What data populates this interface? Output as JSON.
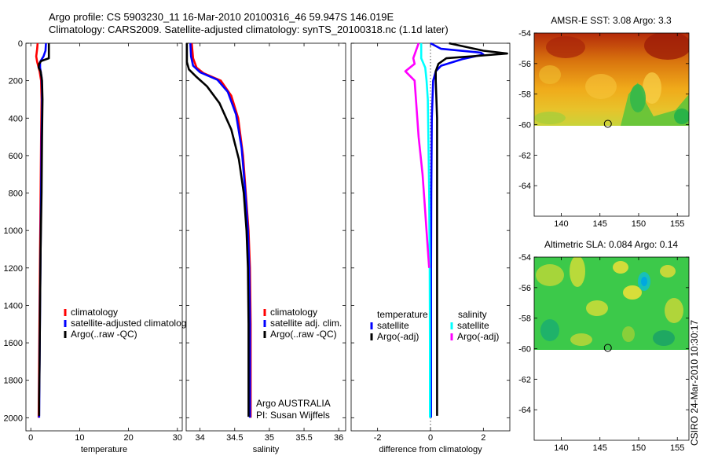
{
  "title_line1": "Argo profile: CS 5903230_11 16-Mar-2010 20100316_46 59.947S 146.019E",
  "title_line2": "Climatology: CARS2009. Satellite-adjusted climatology: synTS_20100318.nc (1.1d later)",
  "credit": "CSIRO 24-Mar-2010 10:30:17",
  "colors": {
    "red": "#ff0000",
    "blue": "#0000ff",
    "black": "#000000",
    "cyan": "#00ffff",
    "magenta": "#ff00ff"
  },
  "chart_data": [
    {
      "type": "line",
      "title": "",
      "xlabel": "temperature",
      "ylabel": "",
      "xlim": [
        -1,
        31
      ],
      "ylim": [
        2070,
        0
      ],
      "xticks": [
        0,
        10,
        20,
        30
      ],
      "yticks": [
        0,
        200,
        400,
        600,
        800,
        1000,
        1200,
        1400,
        1600,
        1800,
        2000
      ],
      "legend": [
        "climatology",
        "satellite-adjusted climatolog",
        "Argo(..raw -QC)"
      ],
      "series": [
        {
          "name": "climatology",
          "color": "#ff0000",
          "points": [
            [
              1.4,
              0
            ],
            [
              1.3,
              30
            ],
            [
              1.1,
              70
            ],
            [
              1.3,
              100
            ],
            [
              1.8,
              150
            ],
            [
              2.1,
              200
            ],
            [
              2.2,
              300
            ],
            [
              2.1,
              500
            ],
            [
              2.0,
              800
            ],
            [
              1.9,
              1100
            ],
            [
              1.8,
              1400
            ],
            [
              1.7,
              1700
            ],
            [
              1.6,
              2000
            ]
          ]
        },
        {
          "name": "satellite-adjusted climatology",
          "color": "#0000ff",
          "points": [
            [
              3.1,
              0
            ],
            [
              3.0,
              40
            ],
            [
              2.6,
              70
            ],
            [
              1.9,
              100
            ],
            [
              1.9,
              130
            ],
            [
              2.2,
              180
            ],
            [
              2.3,
              250
            ],
            [
              2.3,
              350
            ],
            [
              2.2,
              500
            ],
            [
              2.1,
              800
            ],
            [
              2.0,
              1100
            ],
            [
              1.9,
              1400
            ],
            [
              1.8,
              1700
            ],
            [
              1.7,
              2000
            ]
          ]
        },
        {
          "name": "Argo(..raw -QC)",
          "color": "#000000",
          "points": [
            [
              3.7,
              0
            ],
            [
              3.7,
              40
            ],
            [
              3.7,
              80
            ],
            [
              2.1,
              95
            ],
            [
              1.7,
              110
            ],
            [
              1.6,
              130
            ],
            [
              2.0,
              150
            ],
            [
              2.3,
              200
            ],
            [
              2.4,
              300
            ],
            [
              2.3,
              500
            ],
            [
              2.2,
              800
            ],
            [
              2.0,
              1100
            ],
            [
              1.9,
              1400
            ],
            [
              1.8,
              1700
            ],
            [
              1.7,
              1900
            ],
            [
              1.7,
              1990
            ]
          ]
        }
      ]
    },
    {
      "type": "line",
      "title": "",
      "xlabel": "salinity",
      "ylabel": "",
      "xlim": [
        33.8,
        36.1
      ],
      "ylim": [
        2070,
        0
      ],
      "xticks": [
        34,
        34.5,
        35,
        35.5,
        36
      ],
      "xticklabels": [
        "34",
        "34.5",
        "35",
        "35.5",
        "36"
      ],
      "legend": [
        "climatology",
        "satellite adj. clim.",
        "Argo(..raw -QC)"
      ],
      "annotations": [
        "Argo AUSTRALIA",
        "PI: Susan Wijffels"
      ],
      "series": [
        {
          "name": "climatology",
          "color": "#ff0000",
          "points": [
            [
              33.88,
              0
            ],
            [
              33.9,
              80
            ],
            [
              33.95,
              130
            ],
            [
              34.05,
              160
            ],
            [
              34.3,
              200
            ],
            [
              34.45,
              280
            ],
            [
              34.55,
              400
            ],
            [
              34.62,
              600
            ],
            [
              34.66,
              800
            ],
            [
              34.7,
              1000
            ],
            [
              34.72,
              1200
            ],
            [
              34.73,
              1500
            ],
            [
              34.73,
              1800
            ],
            [
              34.73,
              2000
            ]
          ]
        },
        {
          "name": "satellite adj. clim.",
          "color": "#0000ff",
          "points": [
            [
              33.86,
              0
            ],
            [
              33.87,
              70
            ],
            [
              33.9,
              120
            ],
            [
              34.0,
              155
            ],
            [
              34.25,
              195
            ],
            [
              34.4,
              260
            ],
            [
              34.52,
              380
            ],
            [
              34.6,
              560
            ],
            [
              34.65,
              780
            ],
            [
              34.69,
              1000
            ],
            [
              34.71,
              1200
            ],
            [
              34.72,
              1500
            ],
            [
              34.72,
              1800
            ],
            [
              34.72,
              2000
            ]
          ]
        },
        {
          "name": "Argo(..raw -QC)",
          "color": "#000000",
          "points": [
            [
              33.81,
              0
            ],
            [
              33.81,
              100
            ],
            [
              33.84,
              140
            ],
            [
              33.95,
              180
            ],
            [
              34.1,
              230
            ],
            [
              34.28,
              320
            ],
            [
              34.45,
              460
            ],
            [
              34.56,
              620
            ],
            [
              34.63,
              800
            ],
            [
              34.67,
              1000
            ],
            [
              34.69,
              1200
            ],
            [
              34.7,
              1500
            ],
            [
              34.7,
              1800
            ],
            [
              34.7,
              1995
            ]
          ]
        }
      ]
    },
    {
      "type": "line",
      "title": "",
      "xlabel": "difference from climatology",
      "ylabel": "",
      "xlim": [
        -3.0,
        3.0
      ],
      "ylim": [
        2070,
        0
      ],
      "xticks": [
        -2,
        0,
        2
      ],
      "zero_line": true,
      "legend_headers": [
        "temperature",
        "salinity"
      ],
      "legend": [
        "satellite",
        "Argo(-adj)",
        "satellite",
        "Argo(-adj)"
      ],
      "series": [
        {
          "name": "temperature satellite",
          "color": "#0000ff",
          "points": [
            [
              0.0,
              0
            ],
            [
              0.4,
              30
            ],
            [
              1.9,
              50
            ],
            [
              2.0,
              60
            ],
            [
              1.2,
              85
            ],
            [
              0.4,
              120
            ],
            [
              0.2,
              150
            ],
            [
              0.1,
              200
            ],
            [
              0.05,
              400
            ],
            [
              0.03,
              800
            ],
            [
              0.02,
              1200
            ],
            [
              0.02,
              1600
            ],
            [
              0.02,
              2000
            ]
          ]
        },
        {
          "name": "temperature Argo(-adj)",
          "color": "#000000",
          "points": [
            [
              0.7,
              0
            ],
            [
              2.0,
              40
            ],
            [
              2.9,
              55
            ],
            [
              2.0,
              65
            ],
            [
              0.6,
              80
            ],
            [
              0.3,
              110
            ],
            [
              0.2,
              150
            ],
            [
              0.2,
              200
            ],
            [
              0.25,
              400
            ],
            [
              0.25,
              800
            ],
            [
              0.25,
              1200
            ],
            [
              0.25,
              1600
            ],
            [
              0.25,
              1990
            ]
          ]
        },
        {
          "name": "salinity satellite",
          "color": "#00ffff",
          "points": [
            [
              -0.35,
              0
            ],
            [
              -0.35,
              80
            ],
            [
              -0.2,
              130
            ],
            [
              -0.15,
              200
            ],
            [
              -0.1,
              300
            ],
            [
              -0.08,
              500
            ],
            [
              -0.05,
              800
            ],
            [
              -0.03,
              1200
            ],
            [
              -0.02,
              1600
            ],
            [
              -0.02,
              2000
            ]
          ]
        },
        {
          "name": "salinity Argo(-adj)",
          "color": "#ff00ff",
          "points": [
            [
              -0.45,
              0
            ],
            [
              -0.55,
              40
            ],
            [
              -0.65,
              80
            ],
            [
              -0.6,
              110
            ],
            [
              -0.95,
              150
            ],
            [
              -0.6,
              200
            ],
            [
              -0.55,
              300
            ],
            [
              -0.45,
              500
            ],
            [
              -0.3,
              700
            ],
            [
              -0.2,
              900
            ],
            [
              -0.1,
              1100
            ],
            [
              -0.05,
              1200
            ]
          ]
        }
      ]
    },
    {
      "type": "heatmap",
      "title": "AMSR-E SST: 3.08 Argo: 3.3",
      "xlabel": "",
      "ylabel": "",
      "xlim": [
        136.5,
        156.5
      ],
      "ylim": [
        -66,
        -54
      ],
      "xticks": [
        140,
        145,
        150,
        155
      ],
      "yticks": [
        -54,
        -56,
        -58,
        -60,
        -62,
        -64
      ],
      "data_extent_lat": [
        -60.2,
        -54
      ],
      "argo_position": [
        146.019,
        -59.947
      ]
    },
    {
      "type": "heatmap",
      "title": "Altimetric SLA: 0.084 Argo: 0.14",
      "xlabel": "",
      "ylabel": "",
      "xlim": [
        136.5,
        156.5
      ],
      "ylim": [
        -66,
        -54
      ],
      "xticks": [
        140,
        145,
        150,
        155
      ],
      "yticks": [
        -54,
        -56,
        -58,
        -60,
        -62,
        -64
      ],
      "data_extent_lat": [
        -60.2,
        -54
      ],
      "argo_position": [
        146.019,
        -59.947
      ]
    }
  ]
}
